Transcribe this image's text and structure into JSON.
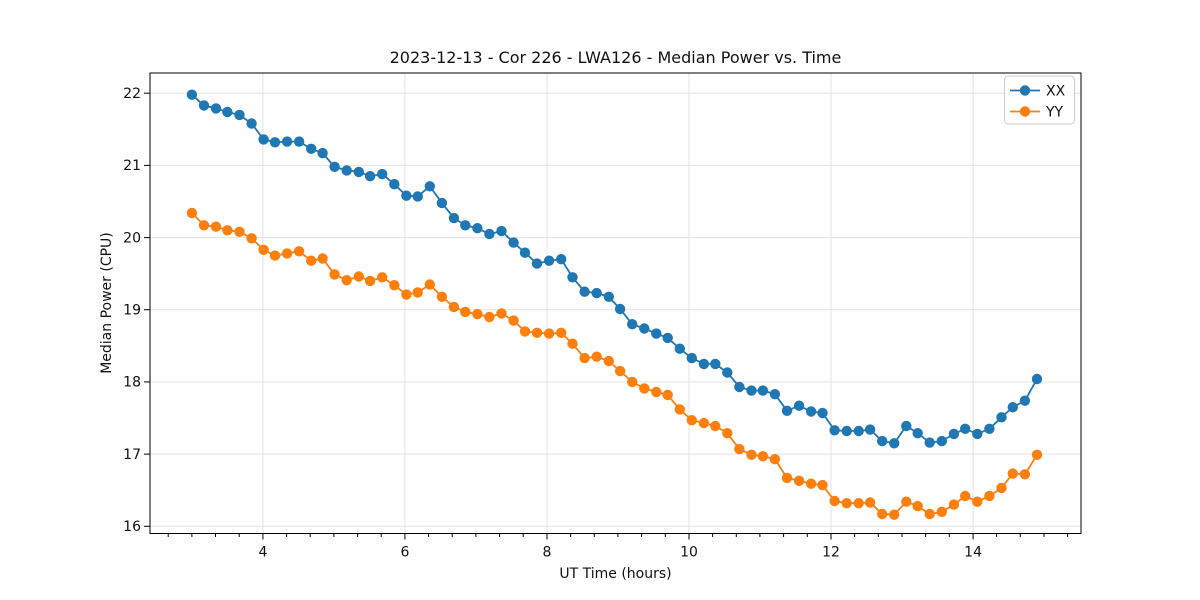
{
  "chart_data": {
    "type": "line",
    "title": "2023-12-13 - Cor 226 - LWA126 - Median Power vs. Time",
    "xlabel": "UT Time (hours)",
    "ylabel": "Median Power (CPU)",
    "xlim": [
      2.41,
      15.52
    ],
    "ylim": [
      15.9,
      22.28
    ],
    "x_major_ticks": [
      4,
      6,
      8,
      10,
      12,
      14
    ],
    "x_minor_step": 0.3333,
    "y_major_ticks": [
      16,
      17,
      18,
      19,
      20,
      21,
      22
    ],
    "grid": true,
    "legend_position": "upper right",
    "marker": "circle",
    "x": [
      3.0,
      3.17,
      3.34,
      3.5,
      3.67,
      3.84,
      4.01,
      4.17,
      4.34,
      4.51,
      4.68,
      4.84,
      5.01,
      5.18,
      5.35,
      5.51,
      5.68,
      5.85,
      6.02,
      6.18,
      6.35,
      6.52,
      6.69,
      6.85,
      7.02,
      7.19,
      7.36,
      7.53,
      7.69,
      7.86,
      8.03,
      8.2,
      8.36,
      8.53,
      8.7,
      8.87,
      9.03,
      9.2,
      9.37,
      9.54,
      9.7,
      9.87,
      10.04,
      10.21,
      10.37,
      10.54,
      10.71,
      10.88,
      11.04,
      11.21,
      11.38,
      11.55,
      11.72,
      11.88,
      12.05,
      12.22,
      12.39,
      12.55,
      12.72,
      12.89,
      13.06,
      13.22,
      13.39,
      13.56,
      13.73,
      13.89,
      14.06,
      14.23,
      14.4,
      14.56,
      14.73,
      14.9
    ],
    "series": [
      {
        "name": "XX",
        "color": "#1f77b4",
        "values": [
          21.98,
          21.83,
          21.79,
          21.74,
          21.7,
          21.58,
          21.36,
          21.32,
          21.33,
          21.33,
          21.23,
          21.17,
          20.98,
          20.93,
          20.91,
          20.85,
          20.88,
          20.74,
          20.58,
          20.57,
          20.71,
          20.48,
          20.27,
          20.17,
          20.13,
          20.05,
          20.09,
          19.93,
          19.79,
          19.64,
          19.68,
          19.7,
          19.45,
          19.25,
          19.23,
          19.18,
          19.01,
          18.8,
          18.74,
          18.67,
          18.61,
          18.46,
          18.33,
          18.25,
          18.25,
          18.13,
          17.93,
          17.88,
          17.88,
          17.83,
          17.6,
          17.67,
          17.59,
          17.57,
          17.33,
          17.32,
          17.32,
          17.34,
          17.18,
          17.15,
          17.39,
          17.29,
          17.16,
          17.18,
          17.28,
          17.35,
          17.28,
          17.35,
          17.51,
          17.65,
          17.74,
          18.04
        ]
      },
      {
        "name": "YY",
        "color": "#ff7f0e",
        "values": [
          20.34,
          20.17,
          20.15,
          20.1,
          20.08,
          19.99,
          19.83,
          19.75,
          19.78,
          19.81,
          19.68,
          19.71,
          19.49,
          19.41,
          19.46,
          19.4,
          19.45,
          19.34,
          19.21,
          19.24,
          19.35,
          19.18,
          19.04,
          18.97,
          18.94,
          18.9,
          18.95,
          18.85,
          18.7,
          18.68,
          18.67,
          18.68,
          18.53,
          18.33,
          18.35,
          18.29,
          18.15,
          18.0,
          17.91,
          17.86,
          17.82,
          17.62,
          17.47,
          17.43,
          17.39,
          17.29,
          17.07,
          16.99,
          16.97,
          16.93,
          16.67,
          16.63,
          16.59,
          16.57,
          16.35,
          16.32,
          16.32,
          16.33,
          16.17,
          16.16,
          16.34,
          16.28,
          16.17,
          16.2,
          16.3,
          16.42,
          16.34,
          16.42,
          16.53,
          16.73,
          16.72,
          16.99
        ]
      }
    ]
  }
}
